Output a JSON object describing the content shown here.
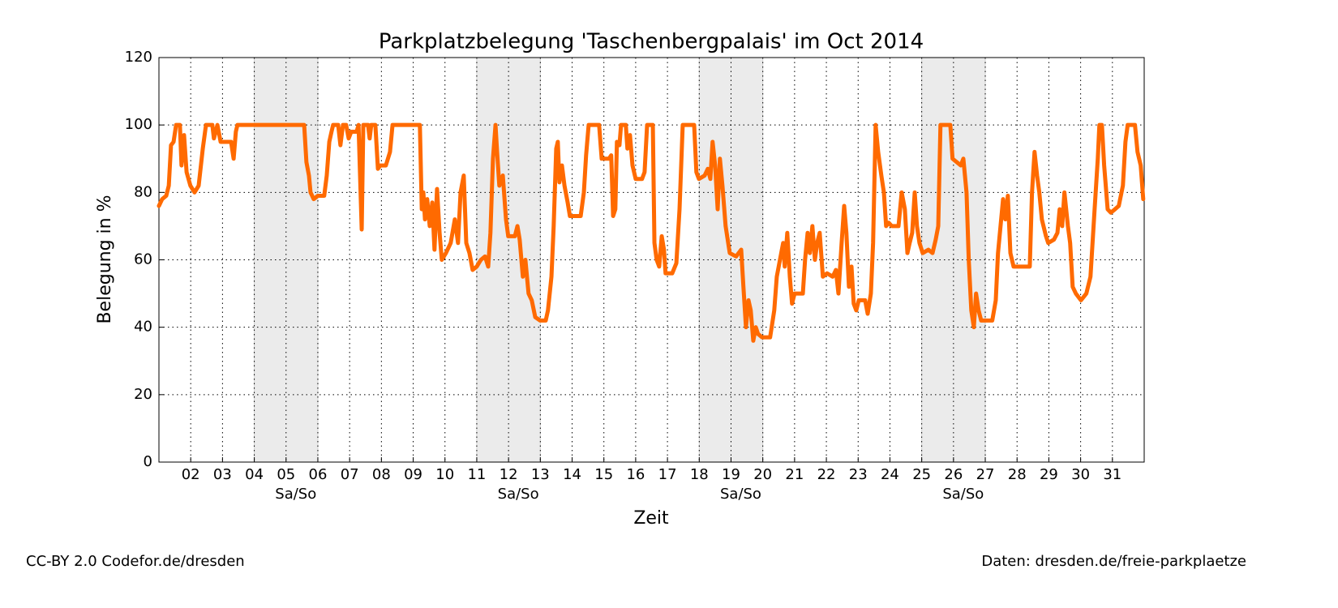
{
  "chart_data": {
    "type": "line",
    "title": "Parkplatzbelegung 'Taschenbergpalais' im Oct 2014",
    "xlabel": "Zeit",
    "ylabel": "Belegung in %",
    "footer_left": "CC-BY 2.0 Codefor.de/dresden",
    "footer_right": "Daten: dresden.de/freie-parkplaetze",
    "color": "#ff6a00",
    "grid": true,
    "xlim": [
      1,
      32
    ],
    "ylim": [
      0,
      120
    ],
    "yticks": [
      0,
      20,
      40,
      60,
      80,
      100,
      120
    ],
    "xticks": [
      {
        "value": 2,
        "label": "02"
      },
      {
        "value": 3,
        "label": "03"
      },
      {
        "value": 4,
        "label": "04"
      },
      {
        "value": 5,
        "label": "05"
      },
      {
        "value": 6,
        "label": "06"
      },
      {
        "value": 7,
        "label": "07"
      },
      {
        "value": 8,
        "label": "08"
      },
      {
        "value": 9,
        "label": "09"
      },
      10,
      11,
      12,
      13,
      14,
      15,
      16,
      17,
      18,
      19,
      20,
      21,
      22,
      23,
      24,
      25,
      26,
      27,
      28,
      29,
      30,
      31
    ],
    "weekend_label": "Sa/So",
    "weekends": [
      {
        "start": 4,
        "end": 6
      },
      {
        "start": 11,
        "end": 13
      },
      {
        "start": 18,
        "end": 20
      },
      {
        "start": 25,
        "end": 27
      }
    ],
    "x": [
      1.0,
      1.1,
      1.23,
      1.31,
      1.38,
      1.46,
      1.54,
      1.66,
      1.71,
      1.79,
      1.87,
      1.99,
      2.12,
      2.25,
      2.38,
      2.48,
      2.68,
      2.73,
      2.84,
      2.94,
      3.27,
      3.35,
      3.42,
      3.47,
      5.57,
      5.64,
      5.72,
      5.77,
      5.87,
      6.0,
      6.2,
      6.28,
      6.36,
      6.43,
      6.48,
      6.64,
      6.71,
      6.79,
      6.89,
      6.97,
      7.05,
      7.22,
      7.28,
      7.38,
      7.43,
      7.58,
      7.63,
      7.68,
      7.81,
      7.89,
      7.96,
      8.14,
      8.27,
      8.35,
      9.21,
      9.27,
      9.32,
      9.37,
      9.44,
      9.52,
      9.6,
      9.67,
      9.75,
      9.83,
      9.9,
      10.03,
      10.18,
      10.31,
      10.41,
      10.49,
      10.59,
      10.67,
      10.77,
      10.87,
      11.0,
      11.13,
      11.26,
      11.36,
      11.43,
      11.51,
      11.59,
      11.64,
      11.71,
      11.82,
      11.92,
      11.99,
      12.2,
      12.28,
      12.35,
      12.45,
      12.53,
      12.63,
      12.73,
      12.84,
      12.99,
      13.17,
      13.24,
      13.35,
      13.42,
      13.5,
      13.55,
      13.6,
      13.68,
      13.76,
      13.86,
      13.93,
      14.27,
      14.37,
      14.44,
      14.52,
      14.85,
      14.93,
      15.16,
      15.23,
      15.29,
      15.36,
      15.41,
      15.49,
      15.54,
      15.69,
      15.74,
      15.82,
      15.9,
      16.0,
      16.2,
      16.28,
      16.36,
      16.54,
      16.59,
      16.66,
      16.74,
      16.82,
      16.89,
      16.94,
      17.15,
      17.28,
      17.38,
      17.48,
      17.84,
      17.91,
      17.99,
      18.17,
      18.27,
      18.35,
      18.42,
      18.5,
      18.58,
      18.65,
      18.73,
      18.83,
      18.96,
      19.16,
      19.32,
      19.39,
      19.47,
      19.55,
      19.62,
      19.7,
      19.78,
      19.85,
      19.98,
      20.23,
      20.36,
      20.44,
      20.54,
      20.64,
      20.69,
      20.77,
      20.85,
      20.92,
      21.0,
      21.26,
      21.33,
      21.41,
      21.48,
      21.56,
      21.64,
      21.71,
      21.79,
      21.89,
      22.02,
      22.2,
      22.3,
      22.38,
      22.48,
      22.56,
      22.63,
      22.71,
      22.79,
      22.86,
      22.94,
      23.02,
      23.22,
      23.3,
      23.4,
      23.47,
      23.55,
      23.63,
      23.73,
      23.81,
      23.88,
      23.96,
      24.06,
      24.27,
      24.37,
      24.47,
      24.55,
      24.62,
      24.7,
      24.78,
      24.85,
      24.93,
      25.03,
      25.21,
      25.34,
      25.44,
      25.52,
      25.59,
      25.9,
      25.97,
      26.1,
      26.23,
      26.31,
      26.41,
      26.48,
      26.56,
      26.64,
      26.71,
      26.79,
      26.87,
      27.22,
      27.33,
      27.4,
      27.48,
      27.56,
      27.63,
      27.71,
      27.79,
      27.89,
      28.4,
      28.47,
      28.55,
      28.63,
      28.7,
      28.78,
      28.91,
      28.98,
      29.16,
      29.27,
      29.34,
      29.42,
      29.49,
      29.6,
      29.67,
      29.75,
      29.85,
      30.01,
      30.18,
      30.31,
      30.44,
      30.54,
      30.59,
      30.67,
      30.74,
      30.85,
      30.95,
      31.08,
      31.2,
      31.33,
      31.41,
      31.48,
      31.71,
      31.79,
      31.89,
      31.97
    ],
    "values": [
      76,
      78,
      79,
      82,
      94,
      95,
      100,
      100,
      88,
      97,
      86,
      82,
      80,
      82,
      93,
      100,
      100,
      96,
      100,
      95,
      95,
      90,
      98,
      100,
      100,
      89,
      85,
      80,
      78,
      79,
      79,
      85,
      95,
      98,
      100,
      100,
      94,
      100,
      100,
      96,
      98,
      98,
      100,
      69,
      100,
      100,
      96,
      100,
      100,
      87,
      88,
      88,
      92,
      100,
      100,
      75,
      80,
      72,
      78,
      70,
      77,
      63,
      81,
      68,
      60,
      62,
      65,
      72,
      65,
      80,
      85,
      65,
      62,
      57,
      58,
      60,
      61,
      58,
      68,
      90,
      100,
      92,
      82,
      85,
      72,
      67,
      67,
      70,
      66,
      55,
      60,
      50,
      48,
      43,
      42,
      42,
      45,
      55,
      70,
      93,
      95,
      83,
      88,
      82,
      77,
      73,
      73,
      80,
      91,
      100,
      100,
      90,
      90,
      91,
      73,
      75,
      95,
      94,
      100,
      100,
      93,
      97,
      88,
      84,
      84,
      86,
      100,
      100,
      65,
      60,
      58,
      67,
      63,
      56,
      56,
      59,
      75,
      100,
      100,
      86,
      84,
      85,
      87,
      84,
      95,
      88,
      75,
      90,
      82,
      70,
      62,
      61,
      63,
      52,
      40,
      48,
      45,
      36,
      40,
      38,
      37,
      37,
      45,
      55,
      60,
      65,
      58,
      68,
      55,
      47,
      50,
      50,
      60,
      68,
      62,
      70,
      60,
      65,
      68,
      55,
      56,
      55,
      57,
      50,
      65,
      76,
      68,
      52,
      58,
      47,
      45,
      48,
      48,
      44,
      50,
      65,
      100,
      92,
      85,
      80,
      70,
      71,
      70,
      70,
      80,
      75,
      62,
      65,
      68,
      80,
      70,
      65,
      62,
      63,
      62,
      66,
      70,
      100,
      100,
      90,
      89,
      88,
      90,
      80,
      60,
      45,
      40,
      50,
      45,
      42,
      42,
      48,
      62,
      70,
      78,
      72,
      79,
      62,
      58,
      58,
      80,
      92,
      85,
      80,
      72,
      67,
      65,
      66,
      68,
      75,
      70,
      80,
      70,
      65,
      52,
      50,
      48,
      50,
      55,
      75,
      90,
      100,
      100,
      88,
      75,
      74,
      75,
      76,
      82,
      95,
      100,
      100,
      92,
      88,
      78
    ]
  }
}
